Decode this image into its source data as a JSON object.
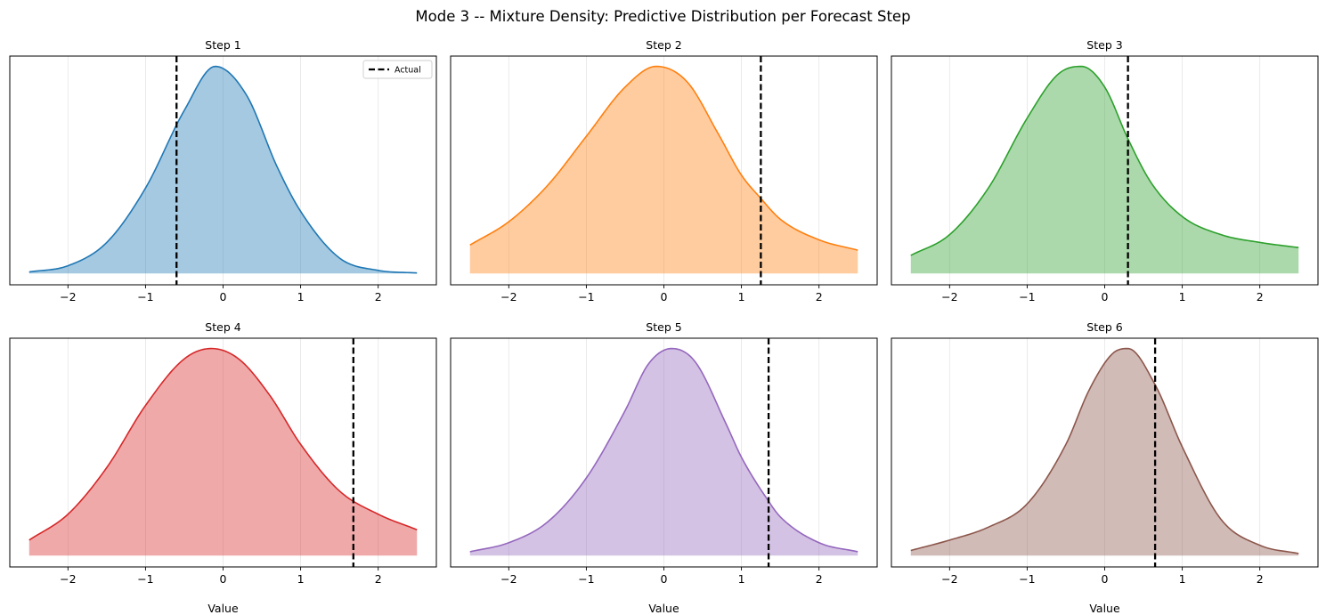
{
  "figure": {
    "suptitle": "Mode 3 -- Mixture Density: Predictive Distribution per Forecast Step"
  },
  "chart_data": [
    {
      "type": "area",
      "title": "Step 1",
      "xlabel": "",
      "ylabel": "",
      "xlim": [
        -2.75,
        2.75
      ],
      "x_ticks": [
        -2,
        -1,
        0,
        1,
        2
      ],
      "y_ticks": [],
      "grid": "x",
      "legend": {
        "position": "top-right",
        "entries": [
          "Actual"
        ]
      },
      "color": "#1f77b4",
      "actual": -0.6,
      "x": [
        -2.5,
        -2.0,
        -1.5,
        -1.0,
        -0.5,
        -0.1,
        0.3,
        0.7,
        1.0,
        1.5,
        2.0,
        2.5
      ],
      "density": [
        0.006,
        0.03,
        0.12,
        0.33,
        0.63,
        0.8,
        0.69,
        0.41,
        0.24,
        0.06,
        0.012,
        0.002
      ]
    },
    {
      "type": "area",
      "title": "Step 2",
      "xlabel": "",
      "ylabel": "",
      "xlim": [
        -2.75,
        2.75
      ],
      "x_ticks": [
        -2,
        -1,
        0,
        1,
        2
      ],
      "y_ticks": [],
      "grid": "x",
      "color": "#ff7f0e",
      "actual": 1.25,
      "x": [
        -2.5,
        -2.0,
        -1.5,
        -1.0,
        -0.5,
        -0.1,
        0.3,
        0.7,
        1.0,
        1.25,
        1.5,
        2.0,
        2.5
      ],
      "density": [
        0.11,
        0.2,
        0.34,
        0.53,
        0.72,
        0.8,
        0.74,
        0.54,
        0.38,
        0.29,
        0.21,
        0.13,
        0.09
      ]
    },
    {
      "type": "area",
      "title": "Step 3",
      "xlabel": "",
      "ylabel": "",
      "xlim": [
        -2.75,
        2.75
      ],
      "x_ticks": [
        -2,
        -1,
        0,
        1,
        2
      ],
      "y_ticks": [],
      "grid": "x",
      "color": "#2ca02c",
      "actual": 0.3,
      "x": [
        -2.5,
        -2.0,
        -1.5,
        -1.0,
        -0.6,
        -0.3,
        0.0,
        0.3,
        0.6,
        1.0,
        1.5,
        2.0,
        2.5
      ],
      "density": [
        0.07,
        0.15,
        0.33,
        0.6,
        0.77,
        0.8,
        0.72,
        0.52,
        0.35,
        0.22,
        0.15,
        0.12,
        0.1
      ]
    },
    {
      "type": "area",
      "title": "Step 4",
      "xlabel": "Value",
      "ylabel": "",
      "xlim": [
        -2.75,
        2.75
      ],
      "x_ticks": [
        -2,
        -1,
        0,
        1,
        2
      ],
      "y_ticks": [],
      "grid": "x",
      "color": "#d62728",
      "actual": 1.68,
      "x": [
        -2.5,
        -2.0,
        -1.5,
        -1.0,
        -0.5,
        -0.15,
        0.2,
        0.6,
        1.0,
        1.5,
        2.0,
        2.5
      ],
      "density": [
        0.06,
        0.16,
        0.34,
        0.58,
        0.76,
        0.8,
        0.76,
        0.62,
        0.43,
        0.25,
        0.16,
        0.1
      ]
    },
    {
      "type": "area",
      "title": "Step 5",
      "xlabel": "Value",
      "ylabel": "",
      "xlim": [
        -2.75,
        2.75
      ],
      "x_ticks": [
        -2,
        -1,
        0,
        1,
        2
      ],
      "y_ticks": [],
      "grid": "x",
      "color": "#9467bd",
      "actual": 1.35,
      "x": [
        -2.5,
        -2.0,
        -1.5,
        -1.0,
        -0.5,
        -0.2,
        0.1,
        0.4,
        0.8,
        1.0,
        1.35,
        1.5,
        2.0,
        2.5
      ],
      "density": [
        0.015,
        0.05,
        0.13,
        0.3,
        0.56,
        0.74,
        0.8,
        0.75,
        0.51,
        0.38,
        0.21,
        0.15,
        0.05,
        0.015
      ]
    },
    {
      "type": "area",
      "title": "Step 6",
      "xlabel": "Value",
      "ylabel": "",
      "xlim": [
        -2.75,
        2.75
      ],
      "x_ticks": [
        -2,
        -1,
        0,
        1,
        2
      ],
      "y_ticks": [],
      "grid": "x",
      "color": "#8c564b",
      "actual": 0.65,
      "x": [
        -2.5,
        -2.0,
        -1.5,
        -1.0,
        -0.5,
        -0.2,
        0.1,
        0.3,
        0.65,
        1.0,
        1.5,
        2.0,
        2.5
      ],
      "density": [
        0.02,
        0.06,
        0.11,
        0.2,
        0.43,
        0.64,
        0.78,
        0.8,
        0.66,
        0.42,
        0.14,
        0.04,
        0.008
      ]
    }
  ]
}
